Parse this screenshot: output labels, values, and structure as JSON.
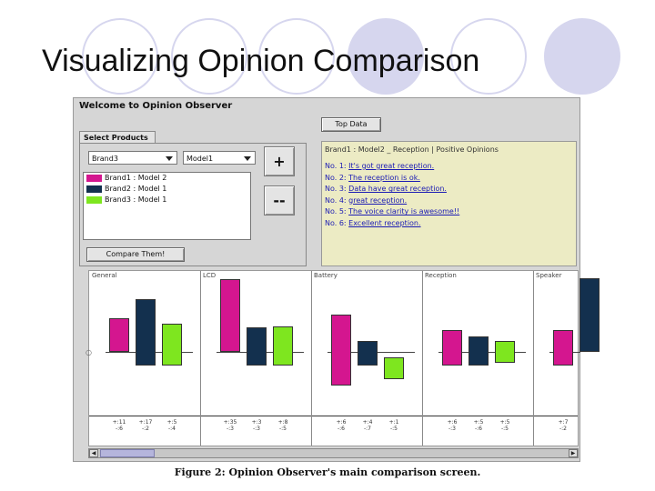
{
  "slide": {
    "title": "Visualizing Opinion Comparison",
    "caption": "Figure 2: Opinion Observer's main comparison screen."
  },
  "app": {
    "window_title": "Welcome to Opinion Observer",
    "top_button": "Top Data",
    "tab": "Select Products",
    "brand_select": "Brand3",
    "model_select": "Model1",
    "add_button": "+",
    "remove_button": "--",
    "compare_button": "Compare Them!",
    "products": [
      {
        "label": "Brand1 : Model 2",
        "color": "#d4168f"
      },
      {
        "label": "Brand2 : Model 1",
        "color": "#13304e"
      },
      {
        "label": "Brand3 : Model 1",
        "color": "#7ee61f"
      }
    ],
    "opinions": {
      "header": "Brand1 : Model2 _ Reception | Positive Opinions",
      "items": [
        {
          "num": "No. 1:",
          "text": "It's got great reception."
        },
        {
          "num": "No. 2:",
          "text": "The reception is ok."
        },
        {
          "num": "No. 3:",
          "text": "Data have great reception."
        },
        {
          "num": "No. 4:",
          "text": "great reception."
        },
        {
          "num": "No. 5:",
          "text": "The voice clarity is awesome!!"
        },
        {
          "num": "No. 6:",
          "text": "Excellent reception."
        }
      ]
    },
    "colors": {
      "brand1": "#d4168f",
      "brand2": "#13304e",
      "brand3": "#7ee61f"
    },
    "chart_data": {
      "type": "bar",
      "categories": [
        "General",
        "LCD",
        "Battery",
        "Reception",
        "Speaker"
      ],
      "series": [
        {
          "values": [
            0.43,
            0.94,
            0.48,
            0.28,
            0.28
          ]
        },
        {
          "values": [
            0.68,
            0.32,
            0.14,
            0.2,
            0.95
          ]
        },
        {
          "values": [
            0.36,
            0.33,
            -0.27,
            0.14,
            null
          ]
        }
      ],
      "negatives": [
        [
          0,
          0,
          -0.44,
          -0.18,
          -0.18
        ],
        [
          -0.18,
          -0.18,
          -0.18,
          -0.18,
          null
        ],
        [
          -0.18,
          -0.18,
          -0.3,
          -0.14,
          null
        ]
      ],
      "ylim": [
        -0.5,
        1.0
      ],
      "stats": [
        [
          "+:11\n-:6",
          "+:17\n-:2",
          "+:5\n-:4"
        ],
        [
          "+:35\n-:3",
          "+:3\n-:3",
          "+:8\n-:5"
        ],
        [
          "+:6\n-:6",
          "+:4\n-:7",
          "+:1\n-:5"
        ],
        [
          "+:6\n-:3",
          "+:5\n-:6",
          "+:5\n-:5"
        ],
        [
          "+:7\n-:2"
        ]
      ],
      "grid": false
    }
  }
}
